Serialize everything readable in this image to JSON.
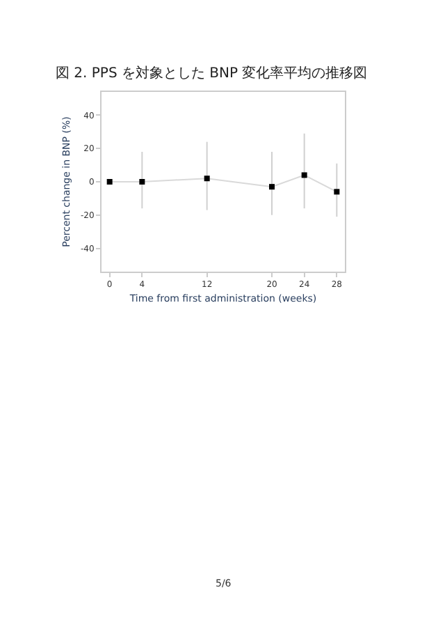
{
  "chart_data": {
    "type": "line",
    "title": "図 2. PPS を対象とした BNP 変化率平均の推移図",
    "xlabel": "Time from first administration (weeks)",
    "ylabel": "Percent change in BNP (%)",
    "x": [
      0,
      4,
      12,
      20,
      24,
      28
    ],
    "series": [
      {
        "color": "#d9d9d9",
        "marker": "none",
        "values": [
          0,
          0,
          2,
          -3,
          4,
          -6
        ]
      },
      {
        "type": "scatter",
        "color": "#000000",
        "values": [
          0,
          0,
          2,
          -3,
          4,
          -6
        ],
        "errors": [
          null,
          [
            -16,
            18
          ],
          [
            -17,
            24
          ],
          [
            -20,
            18
          ],
          [
            -16,
            29
          ],
          [
            -21,
            11
          ]
        ]
      }
    ],
    "xlim": [
      -1,
      29
    ],
    "ylim": [
      -54,
      54
    ],
    "xticks": [
      0,
      4,
      12,
      20,
      24,
      28
    ],
    "yticks": [
      -40,
      -20,
      0,
      20,
      40
    ],
    "marker": "square",
    "line_style": "solid",
    "grid": false,
    "legend": false,
    "annotations": [
      "5/6"
    ]
  }
}
